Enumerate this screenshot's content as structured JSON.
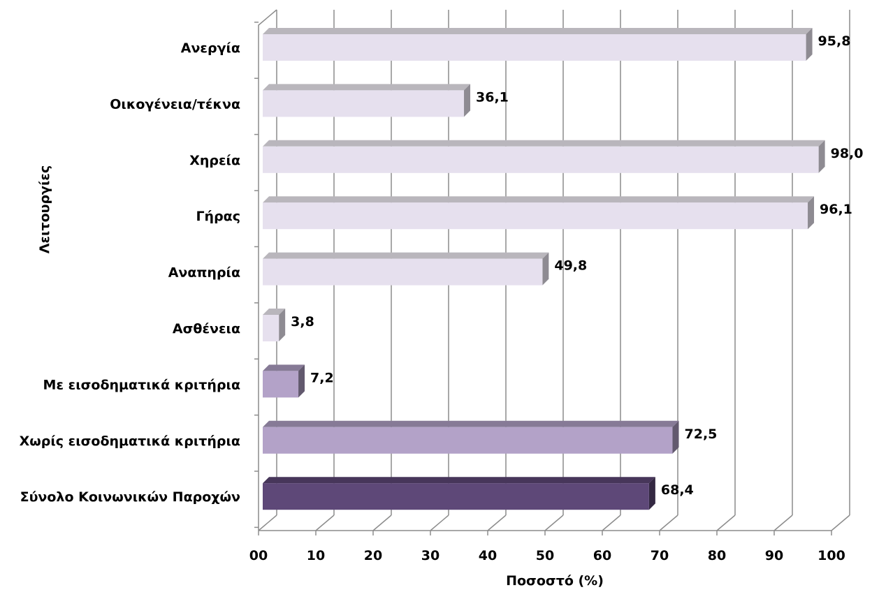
{
  "chart_data": {
    "type": "bar",
    "orientation": "horizontal",
    "three_d": true,
    "categories": [
      "Ανεργία",
      "Οικογένεια/τέκνα",
      "Χηρεία",
      "Γήρας",
      "Αναπηρία",
      "Ασθένεια",
      "Με εισοδηματικά κριτήρια",
      "Χωρίς εισοδηματικά κριτήρια",
      "Σύνολο Κοινωνικών Παροχών"
    ],
    "values": [
      95.8,
      36.1,
      98.0,
      96.1,
      49.8,
      3.8,
      7.2,
      72.5,
      68.4
    ],
    "value_labels": [
      "95,8",
      "36,1",
      "98,0",
      "96,1",
      "49,8",
      "3,8",
      "7,2",
      "72,5",
      "68,4"
    ],
    "bar_colors": [
      "#e6e0ee",
      "#e6e0ee",
      "#e6e0ee",
      "#e6e0ee",
      "#e6e0ee",
      "#e6e0ee",
      "#b3a2c8",
      "#b3a2c8",
      "#5e4878"
    ],
    "x_ticks": [
      "00",
      "10",
      "20",
      "30",
      "40",
      "50",
      "60",
      "70",
      "80",
      "90",
      "100"
    ],
    "xlim": [
      0,
      100
    ],
    "xlabel": "Ποσοστό (%)",
    "ylabel": "Λειτουργίες",
    "grid": true,
    "legend": false
  }
}
